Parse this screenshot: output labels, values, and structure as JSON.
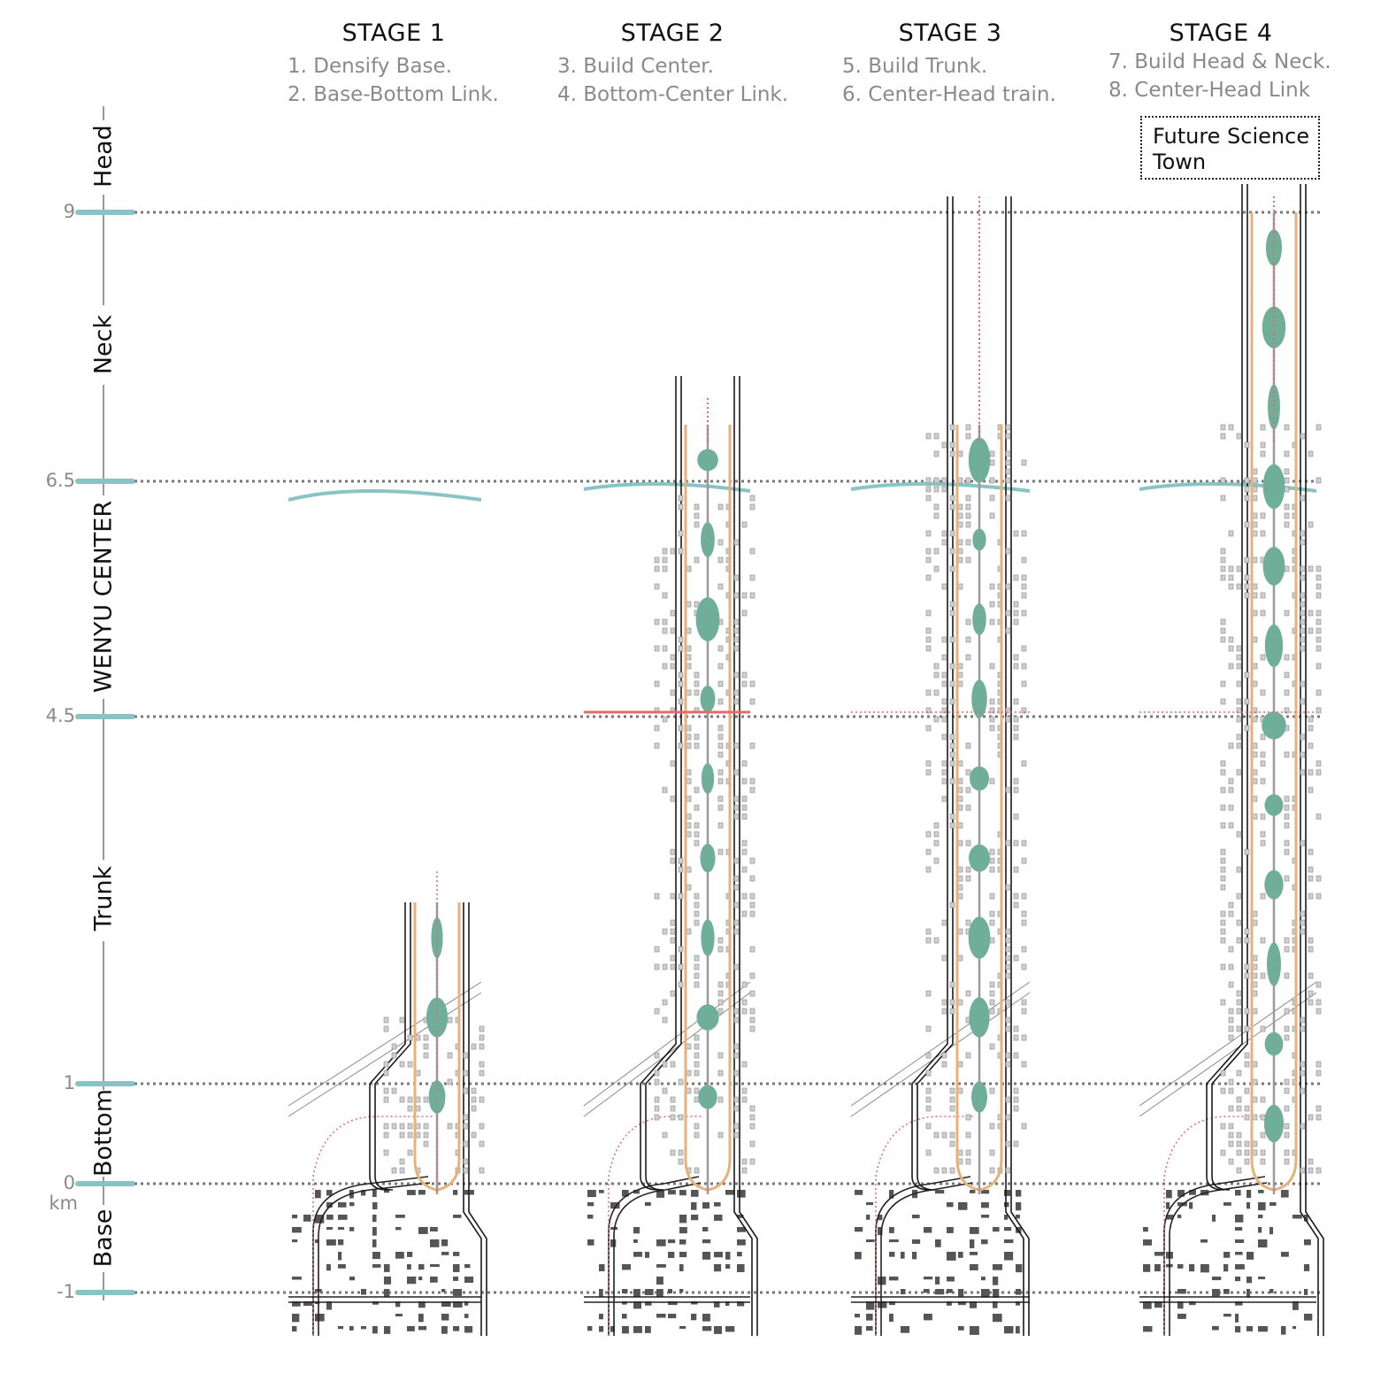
{
  "stages": [
    {
      "title": "STAGE 1",
      "steps": [
        "1. Densify Base.",
        "2. Base-Bottom Link."
      ]
    },
    {
      "title": "STAGE 2",
      "steps": [
        "3. Build Center.",
        "4. Bottom-Center Link."
      ]
    },
    {
      "title": "STAGE 3",
      "steps": [
        "5. Build Trunk.",
        "6. Center-Head train."
      ]
    },
    {
      "title": "STAGE 4",
      "steps": [
        "7. Build Head & Neck.",
        "8. Center-Head Link"
      ]
    }
  ],
  "axis": {
    "unit": "km",
    "ticks": [
      "9",
      "6.5",
      "4.5",
      "1",
      "0",
      "-1"
    ],
    "zones": [
      "Head",
      "Neck",
      "WENYU CENTER",
      "Trunk",
      "Bottom",
      "Base"
    ]
  },
  "callout": {
    "line1": "Future Science",
    "line2": "Town"
  },
  "colors": {
    "teal": "#88c3c6",
    "green": "#6fae98",
    "orange": "#e6b27a",
    "red": "#e06b6b",
    "grey": "#9a9a9a"
  }
}
